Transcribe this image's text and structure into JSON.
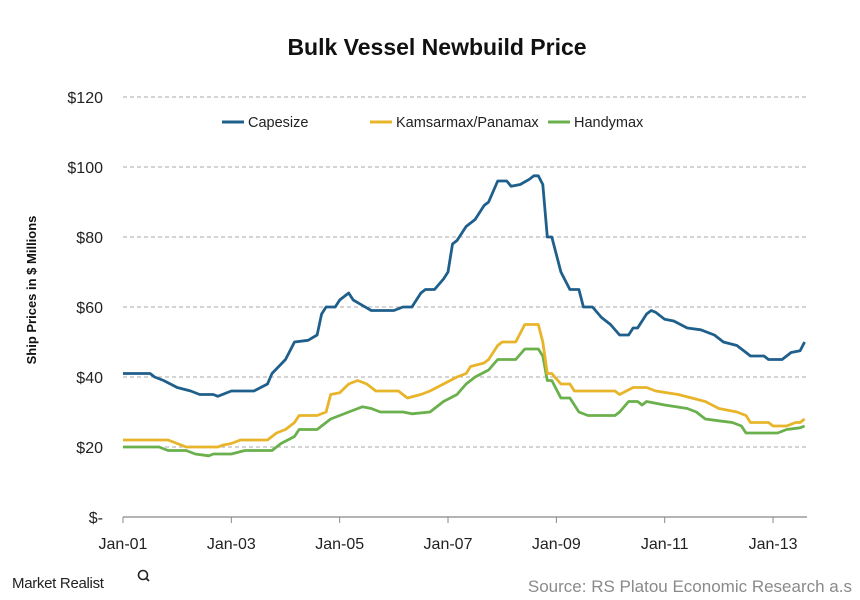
{
  "chart_data": {
    "type": "line",
    "title": "Bulk Vessel Newbuild Price",
    "xlabel": "",
    "ylabel": "Ship Prices in $ Millions",
    "ylim": [
      0,
      120
    ],
    "yticks": [
      0,
      20,
      40,
      60,
      80,
      100,
      120
    ],
    "ytick_labels": [
      "$-",
      "$20",
      "$40",
      "$60",
      "$80",
      "$100",
      "$120"
    ],
    "xlim": [
      "2001-01",
      "2013-08"
    ],
    "xticks": [
      "2001-01",
      "2003-01",
      "2005-01",
      "2007-01",
      "2009-01",
      "2011-01",
      "2013-01"
    ],
    "xtick_labels": [
      "Jan-01",
      "Jan-03",
      "Jan-05",
      "Jan-07",
      "Jan-09",
      "Jan-11",
      "Jan-13"
    ],
    "grid": "horizontal dashed",
    "legend_position": "top",
    "series": [
      {
        "name": "Capesize",
        "color": "#1f5f8b",
        "points": [
          [
            "2001-01",
            41
          ],
          [
            "2001-07",
            41
          ],
          [
            "2001-08",
            40
          ],
          [
            "2001-10",
            39
          ],
          [
            "2002-01",
            37
          ],
          [
            "2002-04",
            36
          ],
          [
            "2002-06",
            35
          ],
          [
            "2002-09",
            35
          ],
          [
            "2002-10",
            34.5
          ],
          [
            "2003-01",
            36
          ],
          [
            "2003-06",
            36
          ],
          [
            "2003-09",
            38
          ],
          [
            "2003-10",
            41
          ],
          [
            "2004-01",
            45
          ],
          [
            "2004-03",
            50
          ],
          [
            "2004-06",
            50.5
          ],
          [
            "2004-08",
            52
          ],
          [
            "2004-09",
            58
          ],
          [
            "2004-10",
            60
          ],
          [
            "2004-12",
            60
          ],
          [
            "2005-01",
            62
          ],
          [
            "2005-03",
            64
          ],
          [
            "2005-04",
            62
          ],
          [
            "2005-06",
            60.5
          ],
          [
            "2005-08",
            59
          ],
          [
            "2006-01",
            59
          ],
          [
            "2006-03",
            60
          ],
          [
            "2006-05",
            60
          ],
          [
            "2006-07",
            64
          ],
          [
            "2006-08",
            65
          ],
          [
            "2006-10",
            65
          ],
          [
            "2006-12",
            68
          ],
          [
            "2007-01",
            70
          ],
          [
            "2007-02",
            78
          ],
          [
            "2007-03",
            79
          ],
          [
            "2007-05",
            83
          ],
          [
            "2007-07",
            85
          ],
          [
            "2007-09",
            89
          ],
          [
            "2007-10",
            90
          ],
          [
            "2007-12",
            96
          ],
          [
            "2008-02",
            96
          ],
          [
            "2008-03",
            94.5
          ],
          [
            "2008-05",
            95
          ],
          [
            "2008-07",
            96.5
          ],
          [
            "2008-08",
            97.5
          ],
          [
            "2008-09",
            97.5
          ],
          [
            "2008-10",
            95
          ],
          [
            "2008-11",
            80
          ],
          [
            "2008-12",
            80
          ],
          [
            "2009-02",
            70
          ],
          [
            "2009-04",
            65
          ],
          [
            "2009-06",
            65
          ],
          [
            "2009-07",
            60
          ],
          [
            "2009-09",
            60
          ],
          [
            "2009-11",
            57
          ],
          [
            "2010-01",
            55
          ],
          [
            "2010-03",
            52
          ],
          [
            "2010-05",
            52
          ],
          [
            "2010-06",
            54
          ],
          [
            "2010-07",
            54
          ],
          [
            "2010-09",
            58
          ],
          [
            "2010-10",
            59
          ],
          [
            "2010-11",
            58.5
          ],
          [
            "2011-01",
            56.5
          ],
          [
            "2011-03",
            56
          ],
          [
            "2011-06",
            54
          ],
          [
            "2011-09",
            53.5
          ],
          [
            "2011-12",
            52
          ],
          [
            "2012-02",
            50
          ],
          [
            "2012-05",
            49
          ],
          [
            "2012-07",
            47
          ],
          [
            "2012-08",
            46
          ],
          [
            "2012-11",
            46
          ],
          [
            "2012-12",
            45
          ],
          [
            "2013-03",
            45
          ],
          [
            "2013-04",
            46
          ],
          [
            "2013-05",
            47
          ],
          [
            "2013-07",
            47.5
          ],
          [
            "2013-08",
            50
          ]
        ]
      },
      {
        "name": "Kamsarmax/Panamax",
        "color": "#e8b42a",
        "points": [
          [
            "2001-01",
            22
          ],
          [
            "2001-11",
            22
          ],
          [
            "2002-01",
            21
          ],
          [
            "2002-03",
            20
          ],
          [
            "2002-10",
            20
          ],
          [
            "2002-11",
            20.5
          ],
          [
            "2003-01",
            21
          ],
          [
            "2003-03",
            22
          ],
          [
            "2003-09",
            22
          ],
          [
            "2003-11",
            24
          ],
          [
            "2004-01",
            25
          ],
          [
            "2004-03",
            27
          ],
          [
            "2004-04",
            29
          ],
          [
            "2004-08",
            29
          ],
          [
            "2004-10",
            30
          ],
          [
            "2004-11",
            35
          ],
          [
            "2005-01",
            35.5
          ],
          [
            "2005-03",
            38
          ],
          [
            "2005-05",
            39
          ],
          [
            "2005-07",
            38
          ],
          [
            "2005-09",
            36
          ],
          [
            "2006-02",
            36
          ],
          [
            "2006-04",
            34
          ],
          [
            "2006-07",
            35
          ],
          [
            "2006-09",
            36
          ],
          [
            "2006-12",
            38
          ],
          [
            "2007-03",
            40
          ],
          [
            "2007-05",
            41
          ],
          [
            "2007-06",
            43
          ],
          [
            "2007-09",
            44
          ],
          [
            "2007-10",
            45
          ],
          [
            "2007-12",
            49
          ],
          [
            "2008-01",
            50
          ],
          [
            "2008-04",
            50
          ],
          [
            "2008-06",
            55
          ],
          [
            "2008-09",
            55
          ],
          [
            "2008-10",
            50
          ],
          [
            "2008-11",
            41
          ],
          [
            "2008-12",
            41
          ],
          [
            "2009-02",
            38
          ],
          [
            "2009-04",
            38
          ],
          [
            "2009-05",
            36
          ],
          [
            "2010-02",
            36
          ],
          [
            "2010-03",
            35
          ],
          [
            "2010-06",
            37
          ],
          [
            "2010-09",
            37
          ],
          [
            "2010-11",
            36
          ],
          [
            "2011-04",
            35
          ],
          [
            "2011-07",
            34
          ],
          [
            "2011-10",
            33
          ],
          [
            "2012-01",
            31
          ],
          [
            "2012-05",
            30
          ],
          [
            "2012-07",
            29
          ],
          [
            "2012-08",
            27
          ],
          [
            "2012-12",
            27
          ],
          [
            "2013-01",
            26
          ],
          [
            "2013-04",
            26
          ],
          [
            "2013-06",
            27
          ],
          [
            "2013-07",
            27
          ],
          [
            "2013-08",
            28
          ]
        ]
      },
      {
        "name": "Handymax",
        "color": "#6ab04c",
        "points": [
          [
            "2001-01",
            20
          ],
          [
            "2001-09",
            20
          ],
          [
            "2001-11",
            19
          ],
          [
            "2002-03",
            19
          ],
          [
            "2002-05",
            18
          ],
          [
            "2002-08",
            17.5
          ],
          [
            "2002-09",
            18
          ],
          [
            "2003-01",
            18
          ],
          [
            "2003-04",
            19
          ],
          [
            "2003-10",
            19
          ],
          [
            "2003-12",
            21
          ],
          [
            "2004-03",
            23
          ],
          [
            "2004-04",
            25
          ],
          [
            "2004-08",
            25
          ],
          [
            "2004-09",
            26
          ],
          [
            "2004-11",
            28
          ],
          [
            "2005-01",
            29
          ],
          [
            "2005-03",
            30
          ],
          [
            "2005-06",
            31.5
          ],
          [
            "2005-08",
            31
          ],
          [
            "2005-10",
            30
          ],
          [
            "2006-03",
            30
          ],
          [
            "2006-05",
            29.5
          ],
          [
            "2006-09",
            30
          ],
          [
            "2006-12",
            33
          ],
          [
            "2007-03",
            35
          ],
          [
            "2007-05",
            38
          ],
          [
            "2007-07",
            40
          ],
          [
            "2007-10",
            42
          ],
          [
            "2007-12",
            45
          ],
          [
            "2008-04",
            45
          ],
          [
            "2008-06",
            48
          ],
          [
            "2008-09",
            48
          ],
          [
            "2008-10",
            46
          ],
          [
            "2008-11",
            39
          ],
          [
            "2008-12",
            39
          ],
          [
            "2009-02",
            34
          ],
          [
            "2009-04",
            34
          ],
          [
            "2009-06",
            30
          ],
          [
            "2009-08",
            29
          ],
          [
            "2010-02",
            29
          ],
          [
            "2010-03",
            30
          ],
          [
            "2010-05",
            33
          ],
          [
            "2010-07",
            33
          ],
          [
            "2010-08",
            32
          ],
          [
            "2010-09",
            33
          ],
          [
            "2011-01",
            32
          ],
          [
            "2011-06",
            31
          ],
          [
            "2011-08",
            30
          ],
          [
            "2011-10",
            28
          ],
          [
            "2012-01",
            27.5
          ],
          [
            "2012-04",
            27
          ],
          [
            "2012-06",
            26
          ],
          [
            "2012-07",
            24
          ],
          [
            "2013-02",
            24
          ],
          [
            "2013-04",
            25
          ],
          [
            "2013-07",
            25.5
          ],
          [
            "2013-08",
            26
          ]
        ]
      }
    ]
  },
  "footer": {
    "source": "Source: RS Platou Economic Research a.s",
    "logo": "Market Realist"
  }
}
